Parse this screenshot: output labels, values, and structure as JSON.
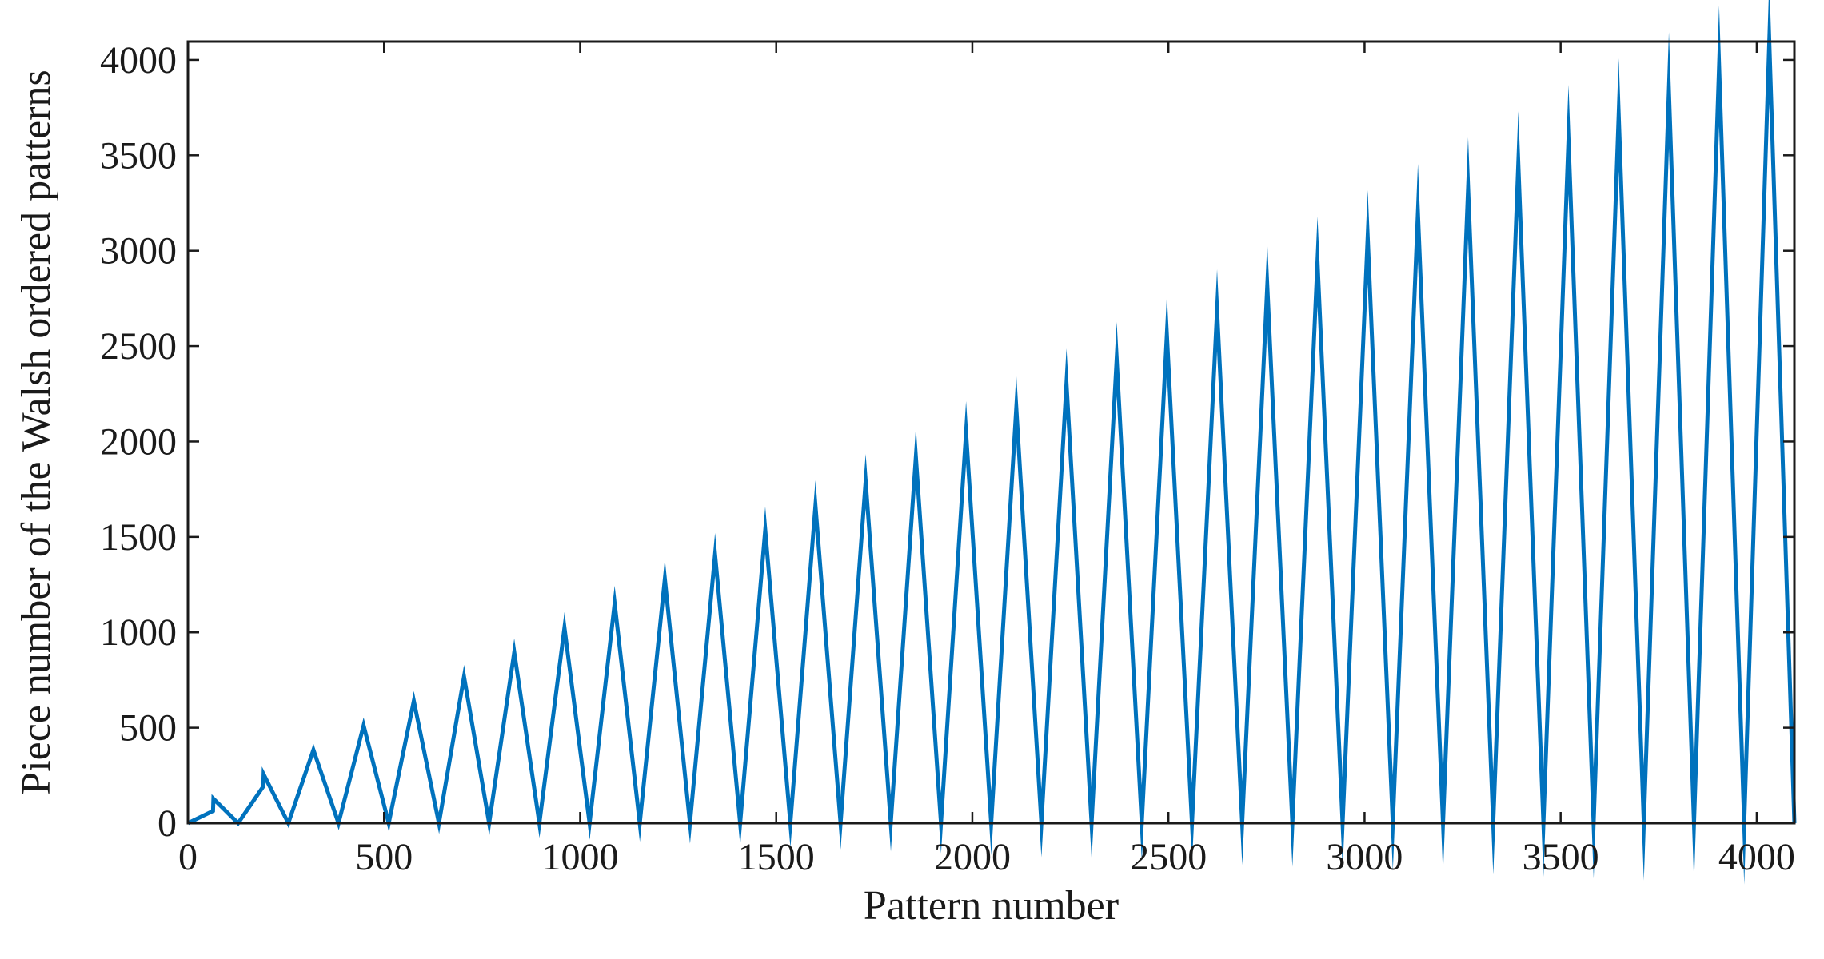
{
  "chart_data": {
    "type": "line",
    "title": "",
    "xlabel": "Pattern number",
    "ylabel": "Piece number of the Walsh ordered patterns",
    "xlim": [
      0,
      4096
    ],
    "ylim": [
      0,
      4096
    ],
    "xticks": [
      0,
      500,
      1000,
      1500,
      2000,
      2500,
      3000,
      3500,
      4000
    ],
    "yticks": [
      0,
      500,
      1000,
      1500,
      2000,
      2500,
      3000,
      3500,
      4000
    ],
    "grid": false,
    "line_color": "#0072bd",
    "series": [
      {
        "values": [
          [
            0,
            0
          ],
          [
            64,
            64
          ],
          [
            65,
            128
          ],
          [
            128,
            0
          ],
          [
            192,
            192
          ],
          [
            193,
            256
          ],
          [
            256,
            0
          ],
          [
            320,
            384
          ],
          [
            384,
            0
          ],
          [
            448,
            512
          ],
          [
            512,
            0
          ],
          [
            576,
            640
          ],
          [
            640,
            0
          ],
          [
            704,
            768
          ],
          [
            768,
            0
          ],
          [
            832,
            896
          ],
          [
            896,
            0
          ],
          [
            960,
            1024
          ],
          [
            1024,
            0
          ],
          [
            1088,
            1152
          ],
          [
            1152,
            0
          ],
          [
            1216,
            1280
          ],
          [
            1280,
            0
          ],
          [
            1344,
            1408
          ],
          [
            1408,
            0
          ],
          [
            1472,
            1536
          ],
          [
            1536,
            0
          ],
          [
            1600,
            1664
          ],
          [
            1664,
            0
          ],
          [
            1728,
            1792
          ],
          [
            1792,
            0
          ],
          [
            1856,
            1920
          ],
          [
            1920,
            0
          ],
          [
            1984,
            2048
          ],
          [
            2048,
            0
          ],
          [
            2112,
            2176
          ],
          [
            2176,
            0
          ],
          [
            2240,
            2304
          ],
          [
            2304,
            0
          ],
          [
            2368,
            2432
          ],
          [
            2432,
            0
          ],
          [
            2496,
            2560
          ],
          [
            2560,
            0
          ],
          [
            2624,
            2688
          ],
          [
            2688,
            0
          ],
          [
            2752,
            2816
          ],
          [
            2816,
            0
          ],
          [
            2880,
            2944
          ],
          [
            2944,
            0
          ],
          [
            3008,
            3072
          ],
          [
            3072,
            0
          ],
          [
            3136,
            3200
          ],
          [
            3200,
            0
          ],
          [
            3264,
            3328
          ],
          [
            3328,
            0
          ],
          [
            3392,
            3456
          ],
          [
            3456,
            0
          ],
          [
            3520,
            3584
          ],
          [
            3584,
            0
          ],
          [
            3648,
            3712
          ],
          [
            3712,
            0
          ],
          [
            3776,
            3840
          ],
          [
            3840,
            0
          ],
          [
            3904,
            3968
          ],
          [
            3968,
            0
          ],
          [
            4032,
            4096
          ],
          [
            4096,
            0
          ]
        ]
      }
    ]
  }
}
